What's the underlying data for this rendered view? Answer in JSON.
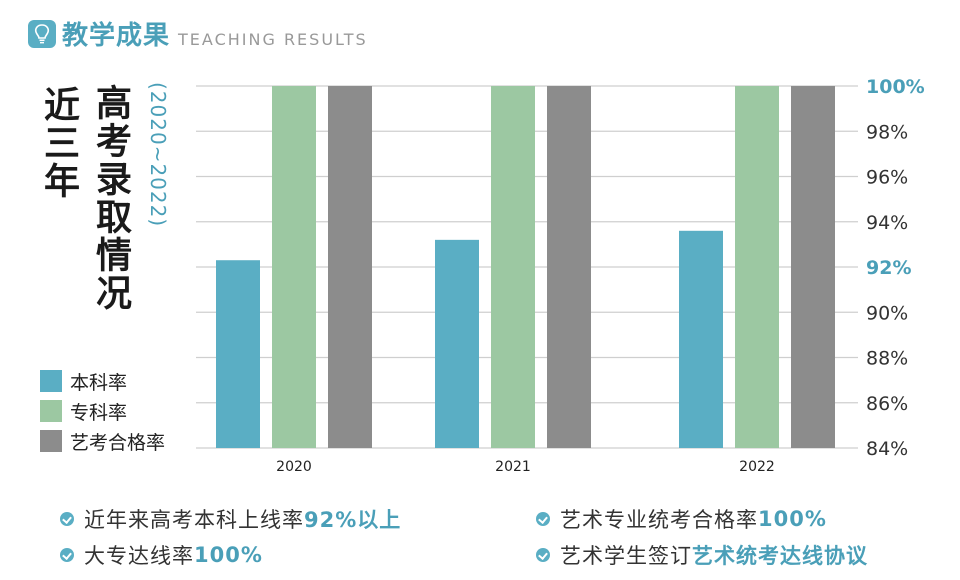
{
  "header": {
    "title": "教学成果",
    "subtitle": "TEACHING RESULTS",
    "icon": "lightbulb-icon"
  },
  "side_title": {
    "line1": "近三年",
    "line2": "高考录取情况",
    "years": "(2020~2022)"
  },
  "legend": [
    {
      "label": "本科率",
      "color": "#5aaec4"
    },
    {
      "label": "专科率",
      "color": "#9cc8a2"
    },
    {
      "label": "艺考合格率",
      "color": "#8c8c8c"
    }
  ],
  "chart_data": {
    "type": "bar",
    "title": "",
    "categories": [
      "2020",
      "2021",
      "2022"
    ],
    "series": [
      {
        "name": "本科率",
        "values": [
          92.3,
          93.2,
          93.6
        ],
        "color": "#5aaec4"
      },
      {
        "name": "专科率",
        "values": [
          100,
          100,
          100
        ],
        "color": "#9cc8a2"
      },
      {
        "name": "艺考合格率",
        "values": [
          100,
          100,
          100
        ],
        "color": "#8c8c8c"
      }
    ],
    "ylim": [
      84,
      100
    ],
    "yticks": [
      "84%",
      "86%",
      "88%",
      "90%",
      "92%",
      "94%",
      "96%",
      "98%",
      "100%"
    ],
    "highlight_ticks": [
      "92%",
      "100%"
    ],
    "y_axis_side": "right",
    "grid": true
  },
  "bullets": {
    "b1": {
      "text": "近年来高考本科上线率",
      "highlight": "92%以上"
    },
    "b2": {
      "text": "大专达线率",
      "highlight": "100%"
    },
    "b3": {
      "text": "艺术专业统考合格率",
      "highlight": "100%"
    },
    "b4": {
      "text": "艺术学生签订",
      "highlight": "艺术统考达线协议"
    }
  },
  "colors": {
    "accent": "#4a9fb8",
    "grid": "#cfcfcf"
  }
}
